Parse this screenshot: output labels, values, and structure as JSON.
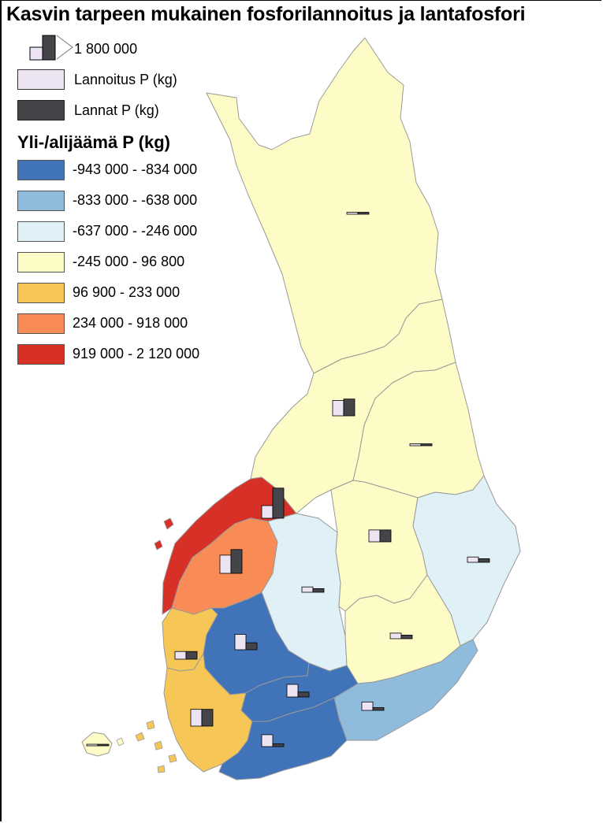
{
  "title": "Kasvin tarpeen mukainen fosforilannoitus ja lantafosfori",
  "legend": {
    "scale_label": "1 800 000",
    "scale_value": 1800000,
    "fertilizer_label": "Lannoitus P (kg)",
    "manure_label": "Lannat P (kg)",
    "fertilizer_color": "#ede4f3",
    "manure_color": "#444449",
    "class_title": "Yli-/alijäämä P (kg)",
    "classes": [
      {
        "label": "-943 000 - -834 000",
        "color": "#4173b9"
      },
      {
        "label": "-833 000 - -638 000",
        "color": "#8fbcdd"
      },
      {
        "label": "-637 000 - -246 000",
        "color": "#dff1f6"
      },
      {
        "label": "-245 000 - 96 800",
        "color": "#fefcc6"
      },
      {
        "label": "96 900 - 233 000",
        "color": "#f6c757"
      },
      {
        "label": "234 000 - 918 000",
        "color": "#f98c56"
      },
      {
        "label": "919 000 - 2 120 000",
        "color": "#d73027"
      }
    ]
  },
  "regions": [
    {
      "id": "lappi",
      "class": 3,
      "fert": 140000,
      "manure": 140000
    },
    {
      "id": "pohjois-pohjanmaa",
      "class": 3,
      "fert": 1100000,
      "manure": 1200000
    },
    {
      "id": "kainuu",
      "class": 3,
      "fert": 140000,
      "manure": 140000
    },
    {
      "id": "pohjanmaa",
      "class": 6,
      "fert": 900000,
      "manure": 2150000
    },
    {
      "id": "etela-pohjanmaa",
      "class": 5,
      "fert": 1300000,
      "manure": 1700000
    },
    {
      "id": "keski-suomi",
      "class": 2,
      "fert": 380000,
      "manure": 260000
    },
    {
      "id": "pohjois-savo",
      "class": 3,
      "fert": 850000,
      "manure": 850000
    },
    {
      "id": "pohjois-karjala",
      "class": 2,
      "fert": 380000,
      "manure": 260000
    },
    {
      "id": "etela-savo",
      "class": 3,
      "fert": 400000,
      "manure": 260000
    },
    {
      "id": "satakunta",
      "class": 4,
      "fert": 550000,
      "manure": 550000
    },
    {
      "id": "pirkanmaa",
      "class": 0,
      "fert": 1100000,
      "manure": 500000
    },
    {
      "id": "kanta-hame",
      "class": 0,
      "fert": 900000,
      "manure": 350000
    },
    {
      "id": "varsinais-suomi",
      "class": 4,
      "fert": 1200000,
      "manure": 1200000
    },
    {
      "id": "uusimaa",
      "class": 0,
      "fert": 850000,
      "manure": 200000
    },
    {
      "id": "kymenlaakso",
      "class": 1,
      "fert": 600000,
      "manure": 200000
    },
    {
      "id": "ahvenanmaa",
      "class": 3,
      "fert": 60000,
      "manure": 60000
    }
  ]
}
